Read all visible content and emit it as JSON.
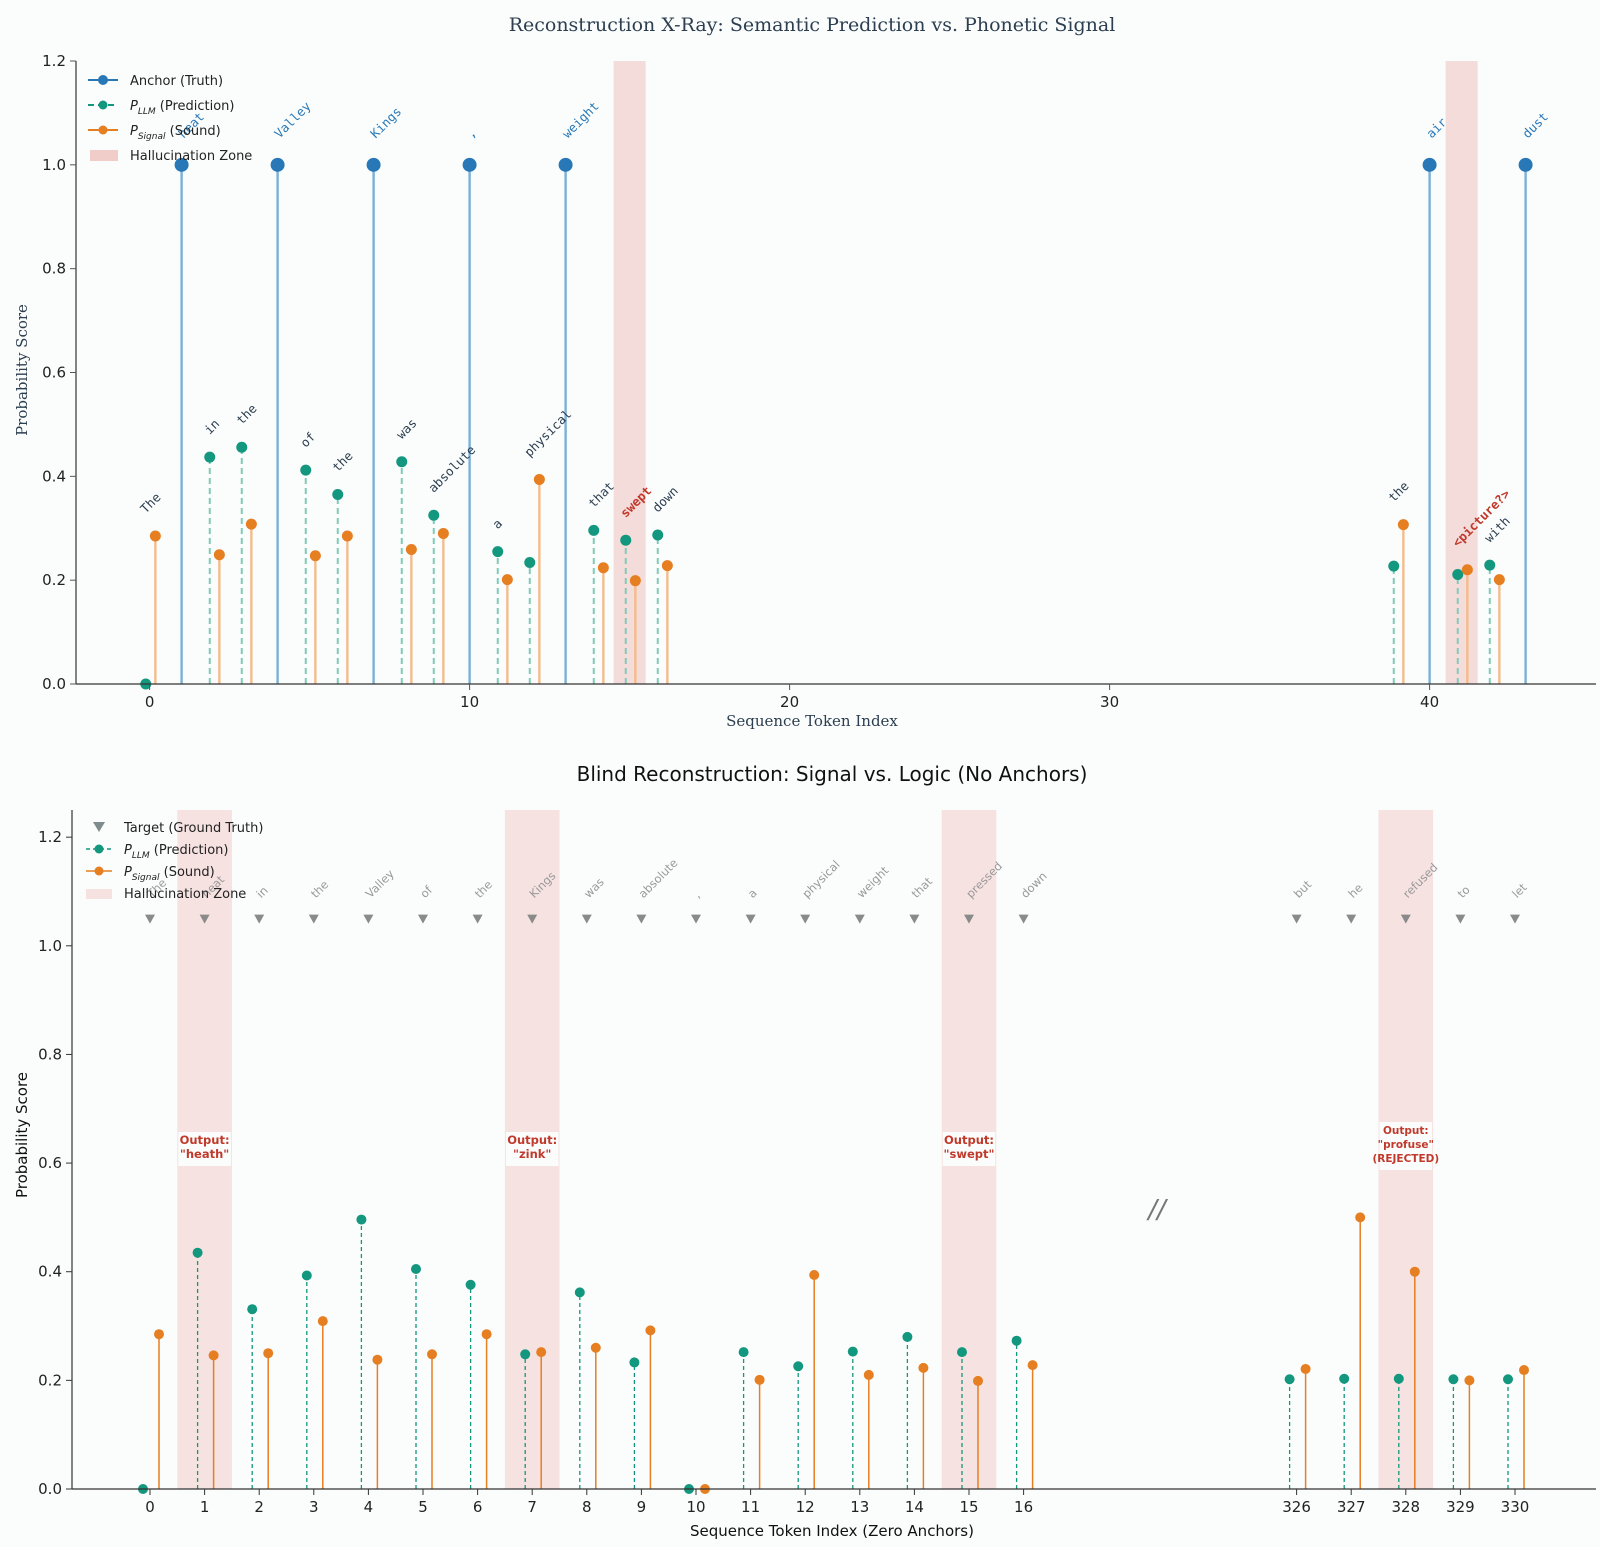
{
  "colors": {
    "anchor": "#2878b8",
    "anchor_stem": "#7bb0d8",
    "llm": "#13977e",
    "llm_stem_top": "#8fd0c2",
    "signal": "#e67e22",
    "signal_stem_top": "#f5bb8a",
    "zone": "#f4dcda",
    "hallucinated_text": "#c0392b",
    "top_label": "#2c3e50",
    "target": "#8a8a8a"
  },
  "chart_data": [
    {
      "type": "stem",
      "title": "Reconstruction X-Ray: Semantic Prediction vs. Phonetic Signal",
      "xlabel": "Sequence Token Index",
      "ylabel": "Probability Score",
      "xlim": [
        -2.3,
        45.2
      ],
      "ylim": [
        0,
        1.2
      ],
      "xticks": [
        0,
        10,
        20,
        30,
        40
      ],
      "yticks": [
        "0.0",
        "0.2",
        "0.4",
        "0.6",
        "0.8",
        "1.0",
        "1.2"
      ],
      "legend": {
        "position": "top-left",
        "anchor": "Anchor (Truth)",
        "llm_sub": "LLM",
        "llm_rest": " (Prediction)",
        "signal_sub": "Signal",
        "signal_rest": " (Sound)",
        "zone": "Hallucination Zone"
      },
      "hallucination_zones": [
        15,
        41
      ],
      "anchors": [
        {
          "x": 1,
          "y": 1.0,
          "label": "heat"
        },
        {
          "x": 4,
          "y": 1.0,
          "label": "Valley"
        },
        {
          "x": 7,
          "y": 1.0,
          "label": "Kings"
        },
        {
          "x": 10,
          "y": 1.0,
          "label": ","
        },
        {
          "x": 13,
          "y": 1.0,
          "label": "weight"
        },
        {
          "x": 40,
          "y": 1.0,
          "label": "air"
        },
        {
          "x": 43,
          "y": 1.0,
          "label": "dust"
        }
      ],
      "tokens": [
        {
          "x": 0,
          "llm": 0.0,
          "signal": 0.285,
          "label": "The"
        },
        {
          "x": 2,
          "llm": 0.437,
          "signal": 0.249,
          "label": "in"
        },
        {
          "x": 3,
          "llm": 0.456,
          "signal": 0.308,
          "label": "the"
        },
        {
          "x": 5,
          "llm": 0.412,
          "signal": 0.247,
          "label": "of"
        },
        {
          "x": 6,
          "llm": 0.365,
          "signal": 0.285,
          "label": "the"
        },
        {
          "x": 8,
          "llm": 0.428,
          "signal": 0.259,
          "label": "was"
        },
        {
          "x": 9,
          "llm": 0.325,
          "signal": 0.29,
          "label": "absolute"
        },
        {
          "x": 11,
          "llm": 0.255,
          "signal": 0.201,
          "label": "a"
        },
        {
          "x": 12,
          "llm": 0.234,
          "signal": 0.394,
          "label": "physical"
        },
        {
          "x": 14,
          "llm": 0.296,
          "signal": 0.224,
          "label": "that"
        },
        {
          "x": 15,
          "llm": 0.277,
          "signal": 0.199,
          "label": "swept",
          "hallucinated": true
        },
        {
          "x": 16,
          "llm": 0.287,
          "signal": 0.228,
          "label": "down"
        },
        {
          "x": 39,
          "llm": 0.227,
          "signal": 0.307,
          "label": "the"
        },
        {
          "x": 41,
          "llm": 0.211,
          "signal": 0.22,
          "label": "<picture?>",
          "hallucinated": true
        },
        {
          "x": 42,
          "llm": 0.229,
          "signal": 0.201,
          "label": "with"
        }
      ]
    },
    {
      "type": "stem",
      "title": "Blind Reconstruction: Signal vs. Logic (No Anchors)",
      "xlabel": "Sequence Token Index (Zero Anchors)",
      "ylabel": "Probability Score",
      "ylim": [
        0,
        1.25
      ],
      "yticks": [
        "0.0",
        "0.2",
        "0.4",
        "0.6",
        "0.8",
        "1.0",
        "1.2"
      ],
      "axis_break": "//",
      "legend": {
        "position": "top-left",
        "target": "Target (Ground Truth)",
        "llm_sub": "LLM",
        "llm_rest": " (Prediction)",
        "signal_sub": "Signal",
        "signal_rest": " (Sound)",
        "zone": "Hallucination Zone"
      },
      "zones": [
        {
          "slot": 1,
          "line1": "Output:",
          "line2": "\"heath\""
        },
        {
          "slot": 7,
          "line1": "Output:",
          "line2": "\"zink\""
        },
        {
          "slot": 15,
          "line1": "Output:",
          "line2": "\"swept\""
        },
        {
          "slot": 23,
          "line1": "Output:",
          "line2": "\"profuse\"",
          "line3": "(REJECTED)"
        }
      ],
      "points": [
        {
          "slot": 0,
          "tick": "0",
          "target": "The",
          "llm": 0.0,
          "signal": 0.285
        },
        {
          "slot": 1,
          "tick": "1",
          "target": "heat",
          "llm": 0.435,
          "signal": 0.246
        },
        {
          "slot": 2,
          "tick": "2",
          "target": "in",
          "llm": 0.331,
          "signal": 0.25
        },
        {
          "slot": 3,
          "tick": "3",
          "target": "the",
          "llm": 0.393,
          "signal": 0.309
        },
        {
          "slot": 4,
          "tick": "4",
          "target": "Valley",
          "llm": 0.496,
          "signal": 0.238
        },
        {
          "slot": 5,
          "tick": "5",
          "target": "of",
          "llm": 0.405,
          "signal": 0.248
        },
        {
          "slot": 6,
          "tick": "6",
          "target": "the",
          "llm": 0.376,
          "signal": 0.285
        },
        {
          "slot": 7,
          "tick": "7",
          "target": "Kings",
          "llm": 0.248,
          "signal": 0.252
        },
        {
          "slot": 8,
          "tick": "8",
          "target": "was",
          "llm": 0.362,
          "signal": 0.26
        },
        {
          "slot": 9,
          "tick": "9",
          "target": "absolute",
          "llm": 0.233,
          "signal": 0.292
        },
        {
          "slot": 10,
          "tick": "10",
          "target": ",",
          "llm": 0.0,
          "signal": 0.0
        },
        {
          "slot": 11,
          "tick": "11",
          "target": "a",
          "llm": 0.252,
          "signal": 0.201
        },
        {
          "slot": 12,
          "tick": "12",
          "target": "physical",
          "llm": 0.226,
          "signal": 0.394
        },
        {
          "slot": 13,
          "tick": "13",
          "target": "weight",
          "llm": 0.253,
          "signal": 0.21
        },
        {
          "slot": 14,
          "tick": "14",
          "target": "that",
          "llm": 0.28,
          "signal": 0.223
        },
        {
          "slot": 15,
          "tick": "15",
          "target": "pressed",
          "llm": 0.252,
          "signal": 0.199
        },
        {
          "slot": 16,
          "tick": "16",
          "target": "down",
          "llm": 0.273,
          "signal": 0.228
        },
        {
          "slot": 21,
          "tick": "326",
          "target": "but",
          "llm": 0.202,
          "signal": 0.221
        },
        {
          "slot": 22,
          "tick": "327",
          "target": "he",
          "llm": 0.203,
          "signal": 0.5
        },
        {
          "slot": 23,
          "tick": "328",
          "target": "refused",
          "llm": 0.203,
          "signal": 0.4
        },
        {
          "slot": 24,
          "tick": "329",
          "target": "to",
          "llm": 0.202,
          "signal": 0.2
        },
        {
          "slot": 25,
          "tick": "330",
          "target": "let",
          "llm": 0.202,
          "signal": 0.219
        }
      ]
    }
  ]
}
